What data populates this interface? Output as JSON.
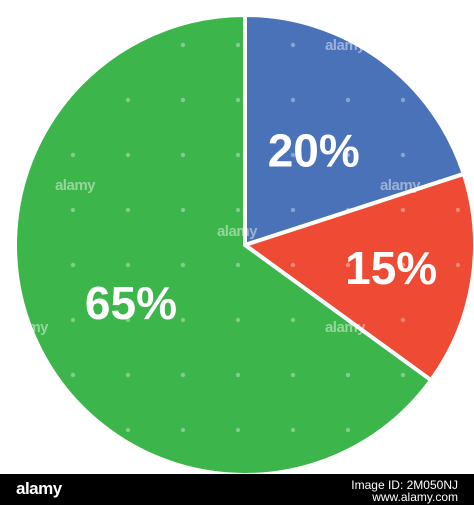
{
  "chart_data": {
    "type": "pie",
    "labels": [
      "20%",
      "15%",
      "65%"
    ],
    "values": [
      20,
      15,
      65
    ],
    "colors": [
      "#4a72b8",
      "#ef4a33",
      "#3cb54a"
    ],
    "start_angle_deg": 0,
    "direction": "clockwise",
    "separator_color": "#ffffff"
  },
  "watermark": {
    "text": "alamy"
  },
  "footer": {
    "logo": "alamy",
    "image_id": "Image ID: 2M050NJ",
    "site": "www.alamy.com"
  }
}
